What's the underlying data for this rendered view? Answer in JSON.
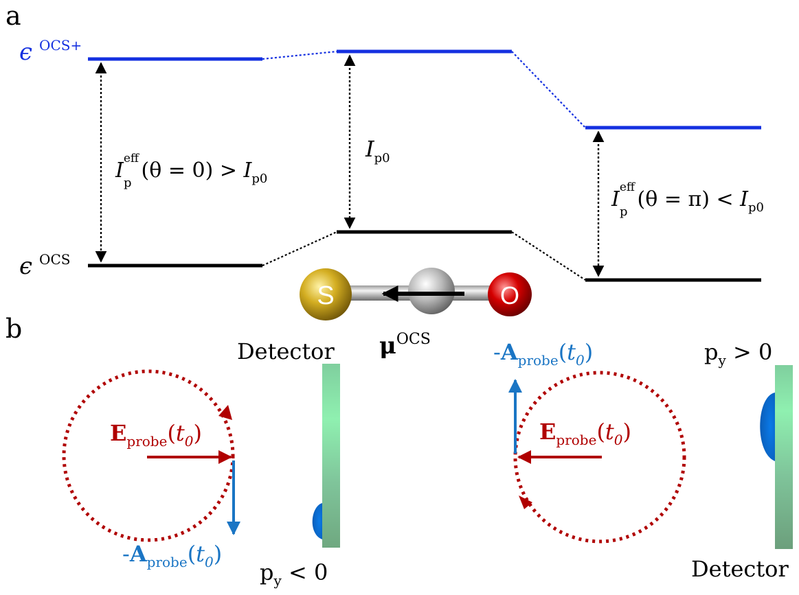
{
  "panel_a": {
    "label": "a",
    "eps_ocs_plus": {
      "symbol": "ϵ",
      "sup": "OCS+"
    },
    "eps_ocs": {
      "symbol": "ϵ",
      "sup": "OCS"
    },
    "left_gap": {
      "I": "I",
      "sub": "p",
      "sup": "eff",
      "condition": "(θ = 0) > ",
      "I2": "I",
      "sub2": "p0"
    },
    "mid_gap": {
      "I": "I",
      "sub": "p0"
    },
    "right_gap": {
      "I": "I",
      "sub": "p",
      "sup": "eff",
      "condition": "(θ = π) < ",
      "I2": "I",
      "sub2": "p0"
    },
    "molecule": {
      "atom_left": "S",
      "atom_right": "O",
      "dipole": "μ",
      "dipole_sup": "OCS"
    },
    "colors": {
      "cation_level": "#1430e0",
      "neutral_level": "#000000",
      "sulfur": "#c9a416",
      "carbon": "#a9a9a9",
      "oxygen": "#cc0000"
    }
  },
  "panel_b": {
    "label": "b",
    "left": {
      "detector_label": "Detector",
      "e_field": {
        "bold": "E",
        "sub": "probe",
        "arg_open": "(",
        "t": "t",
        "t_sub": "0",
        "arg_close": ")"
      },
      "a_field": {
        "prefix": "-",
        "bold": "A",
        "sub": "probe",
        "arg_open": "(",
        "t": "t",
        "t_sub": "0",
        "arg_close": ")"
      },
      "momentum": {
        "p": "p",
        "sub": "y",
        "rel": " < 0"
      }
    },
    "right": {
      "detector_label": "Detector",
      "e_field": {
        "bold": "E",
        "sub": "probe",
        "arg_open": "(",
        "t": "t",
        "t_sub": "0",
        "arg_close": ")"
      },
      "a_field": {
        "prefix": "-",
        "bold": "A",
        "sub": "probe",
        "arg_open": "(",
        "t": "t",
        "t_sub": "0",
        "arg_close": ")"
      },
      "momentum": {
        "p": "p",
        "sub": "y",
        "rel": " > 0"
      }
    },
    "colors": {
      "e_arrow": "#b00000",
      "a_arrow": "#1a75c4",
      "detector": "#80d6a4",
      "electron_spot": "#0a6fd6"
    }
  }
}
